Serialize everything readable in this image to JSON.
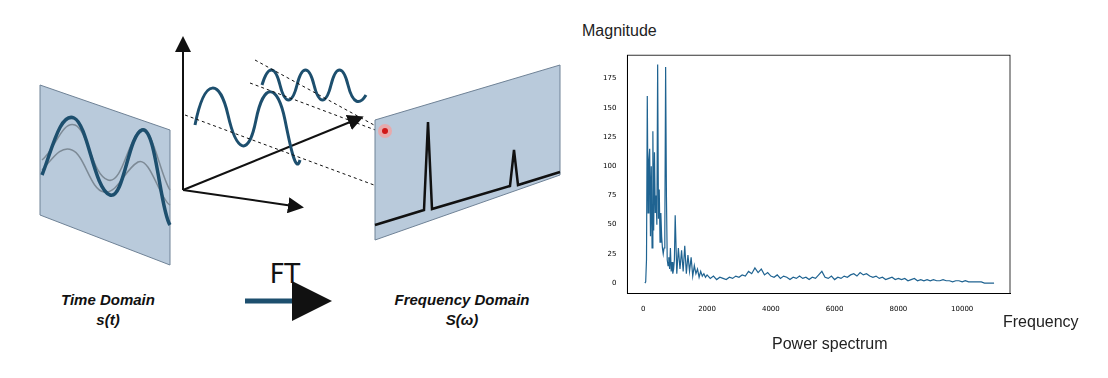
{
  "diagram": {
    "left_label": "Time Domain",
    "left_formula": "s(t)",
    "arrow_label": "FT",
    "right_label": "Frequency Domain",
    "right_formula": "S(ω)"
  },
  "chart_data": {
    "type": "line",
    "title": "Power spectrum",
    "x_label": "Frequency",
    "y_label": "Magnitude",
    "color": "#1f6391",
    "grid": false,
    "xlim": [
      -500,
      11500
    ],
    "xticks": [
      0,
      2000,
      4000,
      6000,
      8000,
      10000
    ],
    "ylim": [
      -9,
      195
    ],
    "yticks": [
      0,
      25,
      50,
      75,
      100,
      125,
      150,
      175
    ],
    "x": [
      50,
      75,
      100,
      125,
      150,
      175,
      200,
      225,
      250,
      275,
      300,
      325,
      350,
      375,
      400,
      425,
      450,
      475,
      500,
      525,
      550,
      575,
      600,
      625,
      650,
      675,
      700,
      725,
      750,
      775,
      800,
      825,
      850,
      875,
      900,
      925,
      950,
      975,
      1000,
      1050,
      1100,
      1150,
      1200,
      1250,
      1300,
      1350,
      1400,
      1450,
      1500,
      1550,
      1600,
      1650,
      1700,
      1750,
      1800,
      1850,
      1900,
      1950,
      2000,
      2100,
      2200,
      2300,
      2400,
      2500,
      2600,
      2700,
      2800,
      2900,
      3000,
      3100,
      3200,
      3300,
      3400,
      3500,
      3600,
      3700,
      3800,
      3900,
      4000,
      4100,
      4200,
      4300,
      4400,
      4500,
      4600,
      4700,
      4800,
      4900,
      5000,
      5100,
      5200,
      5300,
      5400,
      5500,
      5600,
      5700,
      5800,
      5900,
      6000,
      6100,
      6200,
      6300,
      6400,
      6500,
      6600,
      6700,
      6800,
      6900,
      7000,
      7100,
      7200,
      7300,
      7400,
      7500,
      7600,
      7700,
      7800,
      7900,
      8000,
      8100,
      8200,
      8300,
      8400,
      8500,
      8600,
      8700,
      8800,
      8900,
      9000,
      9100,
      9200,
      9300,
      9400,
      9500,
      9600,
      9700,
      9800,
      9900,
      10000,
      10100,
      10200,
      10300,
      10400,
      10500,
      10600,
      10700,
      10800,
      10900,
      11000
    ],
    "values": [
      0,
      1,
      20,
      160,
      60,
      105,
      115,
      40,
      100,
      30,
      130,
      45,
      112,
      60,
      75,
      50,
      187,
      55,
      80,
      35,
      60,
      40,
      30,
      25,
      30,
      45,
      185,
      75,
      20,
      15,
      22,
      12,
      30,
      10,
      18,
      8,
      12,
      20,
      58,
      8,
      30,
      12,
      28,
      10,
      32,
      8,
      24,
      10,
      22,
      6,
      15,
      8,
      12,
      5,
      10,
      6,
      8,
      5,
      7,
      4,
      6,
      3,
      5,
      4,
      3,
      5,
      4,
      6,
      5,
      7,
      6,
      10,
      8,
      13,
      9,
      12,
      7,
      9,
      6,
      5,
      7,
      4,
      6,
      5,
      3,
      5,
      4,
      6,
      4,
      5,
      3,
      5,
      4,
      7,
      10,
      5,
      4,
      6,
      3,
      5,
      4,
      6,
      5,
      7,
      8,
      6,
      9,
      7,
      8,
      6,
      5,
      6,
      4,
      5,
      3,
      4,
      5,
      3,
      4,
      3,
      4,
      2,
      3,
      4,
      2,
      3,
      2,
      3,
      2,
      3,
      2,
      2,
      3,
      2,
      2,
      1,
      2,
      2,
      1,
      2,
      1,
      1,
      1,
      1,
      1,
      0,
      0,
      0,
      0
    ]
  }
}
